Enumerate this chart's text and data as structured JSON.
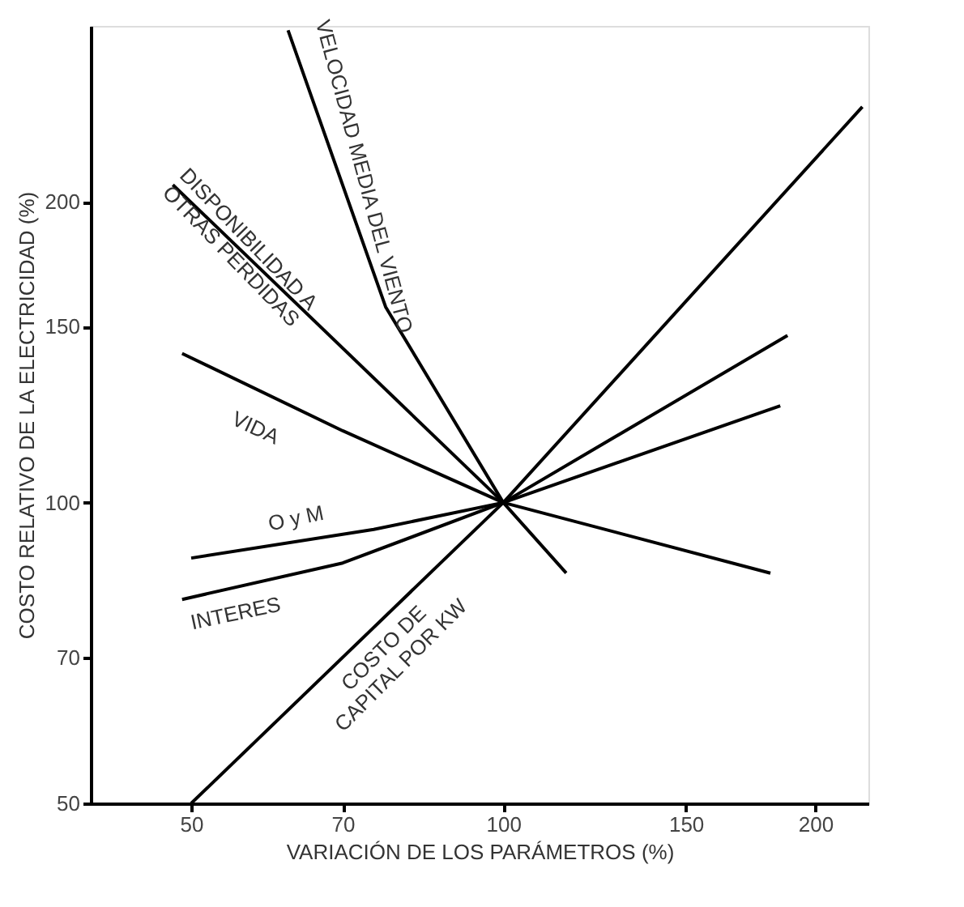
{
  "chart_data": {
    "type": "line",
    "xlabel": "VARIACIÓN DE LOS PARÁMETROS (%)",
    "ylabel": "COSTO RELATIVO DE LA ELECTRICIDAD (%)",
    "log": "xy",
    "grid": false,
    "line_style": "solid",
    "xlim": [
      40,
      225
    ],
    "xticks": [
      50,
      70,
      100,
      150,
      200
    ],
    "ylim": [
      50,
      300
    ],
    "yticks": [
      50,
      70,
      100,
      150,
      200
    ],
    "series": [
      {
        "name": "VELOCIDAD MEDIA DEL VIENTO",
        "color": "#000000",
        "x": [
          62,
          77,
          100,
          115
        ],
        "values": [
          297,
          157,
          100,
          85
        ]
      },
      {
        "name": "DISPONIBILIDAD A\nOTRAS PERDIDAS",
        "color": "#000000",
        "x": [
          48,
          100
        ],
        "values": [
          208,
          100
        ]
      },
      {
        "name": "VIDA",
        "color": "#000000",
        "x": [
          49,
          70,
          100,
          181
        ],
        "values": [
          141,
          118,
          100,
          85
        ]
      },
      {
        "name": "O y M",
        "color": "#000000",
        "x": [
          50,
          75,
          100,
          185
        ],
        "values": [
          88,
          94,
          100,
          125
        ]
      },
      {
        "name": "INTERES",
        "color": "#000000",
        "x": [
          49,
          70,
          100,
          188
        ],
        "values": [
          80,
          87,
          100,
          147
        ]
      },
      {
        "name": "COSTO DE\nCAPITAL POR KW",
        "color": "#000000",
        "x": [
          50,
          100,
          222
        ],
        "values": [
          50,
          100,
          249
        ]
      }
    ]
  }
}
